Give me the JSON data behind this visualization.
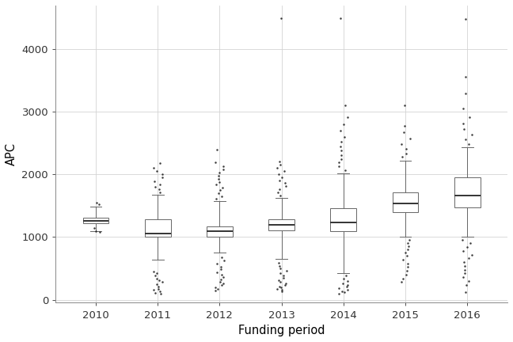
{
  "years": [
    2010,
    2011,
    2012,
    2013,
    2014,
    2015,
    2016
  ],
  "box_stats": {
    "2010": {
      "q1": 1225,
      "median": 1265,
      "q3": 1305,
      "whisker_low": 1095,
      "whisker_high": 1490,
      "outliers": [
        1080,
        1090,
        1150,
        1520,
        1550
      ]
    },
    "2011": {
      "q1": 1000,
      "median": 1060,
      "q3": 1280,
      "whisker_low": 640,
      "whisker_high": 1680,
      "outliers": [
        450,
        420,
        380,
        340,
        310,
        280,
        250,
        210,
        175,
        155,
        130,
        110,
        100,
        1720,
        1760,
        1800,
        1840,
        1890,
        1950,
        2000,
        2060,
        2110,
        2180
      ]
    },
    "2012": {
      "q1": 1000,
      "median": 1090,
      "q3": 1170,
      "whisker_low": 750,
      "whisker_high": 1570,
      "outliers": [
        680,
        630,
        580,
        530,
        490,
        440,
        400,
        360,
        320,
        290,
        260,
        230,
        200,
        170,
        140,
        1610,
        1650,
        1700,
        1750,
        1790,
        1840,
        1880,
        1930,
        1980,
        2030,
        2080,
        2130,
        2200,
        2400
      ]
    },
    "2013": {
      "q1": 1110,
      "median": 1200,
      "q3": 1290,
      "whisker_low": 650,
      "whisker_high": 1620,
      "outliers": [
        590,
        540,
        500,
        460,
        420,
        380,
        350,
        310,
        280,
        255,
        230,
        210,
        190,
        170,
        155,
        135,
        1660,
        1710,
        1760,
        1810,
        1860,
        1910,
        1960,
        2010,
        2060,
        2110,
        2160,
        2210,
        4500
      ]
    },
    "2014": {
      "q1": 1100,
      "median": 1230,
      "q3": 1460,
      "whisker_low": 420,
      "whisker_high": 2020,
      "outliers": [
        380,
        340,
        300,
        265,
        235,
        205,
        180,
        155,
        135,
        115,
        100,
        2070,
        2130,
        2190,
        2250,
        2310,
        2380,
        2450,
        2520,
        2600,
        2700,
        2800,
        2920,
        3100,
        4500
      ]
    },
    "2015": {
      "q1": 1400,
      "median": 1540,
      "q3": 1720,
      "whisker_low": 1000,
      "whisker_high": 2220,
      "outliers": [
        950,
        900,
        850,
        800,
        750,
        700,
        640,
        580,
        520,
        460,
        400,
        340,
        280,
        2280,
        2340,
        2410,
        2490,
        2580,
        2680,
        2780,
        3100
      ]
    },
    "2016": {
      "q1": 1480,
      "median": 1660,
      "q3": 1960,
      "whisker_low": 1010,
      "whisker_high": 2430,
      "outliers": [
        960,
        900,
        840,
        780,
        720,
        660,
        600,
        540,
        480,
        420,
        360,
        300,
        240,
        120,
        2490,
        2560,
        2640,
        2730,
        2820,
        2920,
        3050,
        3300,
        3560,
        4480
      ]
    }
  },
  "xlabel": "Funding period",
  "ylabel": "APC",
  "ylim": [
    -50,
    4700
  ],
  "yticks": [
    0,
    1000,
    2000,
    3000,
    4000
  ],
  "background_color": "#ffffff",
  "grid_color": "#d3d3d3",
  "box_color": "#ffffff",
  "box_edge_color": "#666666",
  "median_color": "#333333",
  "whisker_color": "#666666",
  "outlier_color": "#1a1a1a",
  "box_width": 0.42,
  "flier_size": 1.8,
  "linewidth": 0.7
}
